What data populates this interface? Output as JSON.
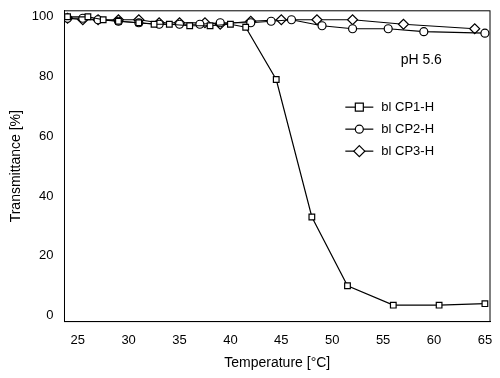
{
  "chart_data": {
    "type": "line",
    "x_label": "Temperature [°C]",
    "y_label": "Transmittance [%]",
    "annotation": "pH 5.6",
    "xlim": [
      23.7,
      65.5
    ],
    "xticks": [
      25,
      30,
      35,
      40,
      45,
      50,
      55,
      60,
      65
    ],
    "ylim": [
      -2,
      102
    ],
    "yticks": [
      0,
      20,
      40,
      60,
      80,
      100
    ],
    "grid": false,
    "legend": "right",
    "series": [
      {
        "name": "bl CP1-H",
        "color": "#000000",
        "marker": "square",
        "line_style": "solid",
        "x": [
          24,
          26,
          27.5,
          29,
          31,
          32.5,
          34,
          36,
          38,
          40,
          41.5,
          44.5,
          48,
          51.5,
          56,
          60.5,
          65
        ],
        "values": [
          100,
          100,
          99,
          98.5,
          98,
          97.5,
          97.5,
          97,
          97,
          97.5,
          96.5,
          79,
          33,
          10,
          3.5,
          3.5,
          4
        ]
      },
      {
        "name": "bl CP2-H",
        "color": "#000000",
        "marker": "circle",
        "line_style": "solid",
        "x": [
          24,
          25.5,
          27,
          29,
          31,
          33,
          35,
          37,
          39,
          42,
          44,
          46,
          49,
          52,
          55.5,
          59,
          65
        ],
        "values": [
          99.5,
          99.5,
          99,
          98.5,
          98,
          97.5,
          97.5,
          97.5,
          98,
          98,
          98.5,
          99,
          97,
          96,
          96,
          95,
          94.5
        ]
      },
      {
        "name": "bl CP3-H",
        "color": "#000000",
        "marker": "diamond",
        "line_style": "solid",
        "x": [
          24,
          25.5,
          27,
          29,
          31,
          33,
          35,
          37.5,
          39,
          42,
          45,
          48.5,
          52,
          57,
          64
        ],
        "values": [
          99.5,
          99,
          99,
          99,
          99,
          98,
          98,
          98,
          97.5,
          98.5,
          99,
          99,
          99,
          97.5,
          96
        ]
      }
    ]
  }
}
